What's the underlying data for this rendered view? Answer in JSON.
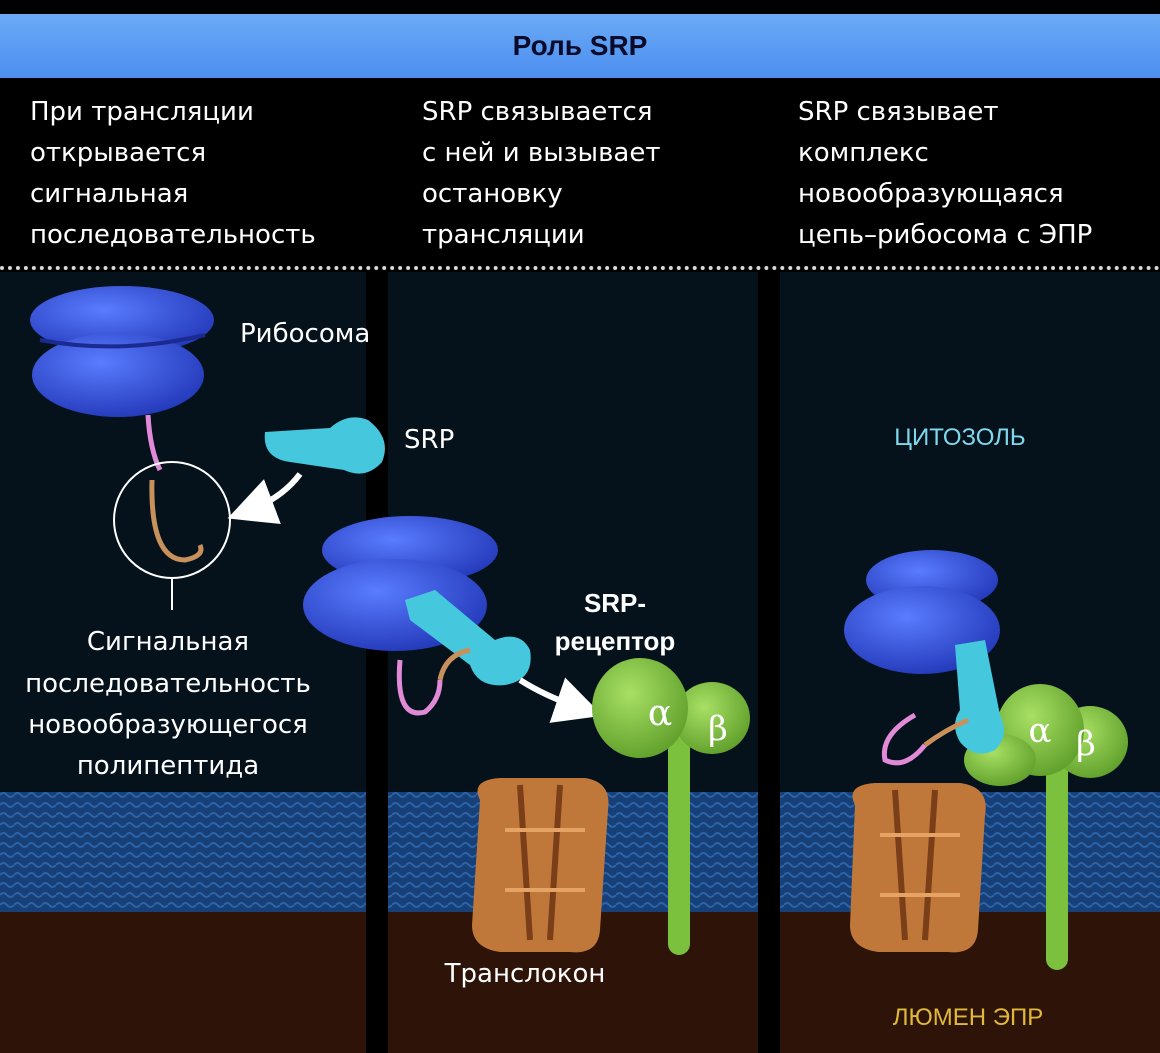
{
  "title": "Роль SRP",
  "steps": [
    "При трансляции\nоткрывается\nсигнальная\nпоследовательность",
    "SRP связывается\nс ней и вызывает\nостановку\nтрансляции",
    "SRP связывает\nкомплекс\nновообразующаяся\nцепь–рибосома с ЭПР"
  ],
  "labels": {
    "ribosome": "Рибосома",
    "srp": "SRP",
    "signal_line1": "Сигнальная",
    "signal_line2": "последовательность",
    "signal_line3": "новообразующегося",
    "signal_line4": "полипептида",
    "srp_receptor_line1": "SRP-",
    "srp_receptor_line2": "рецептор",
    "alpha": "α",
    "beta": "β",
    "translocon": "Транслокон",
    "cytosol": "ЦИТОЗОЛЬ",
    "er_lumen": "ЛЮМЕН ЭПР"
  },
  "colors": {
    "banner": "#5a9cf2",
    "ribosome": "#3a5fe0",
    "srp": "#40c8e0",
    "receptor": "#8cd24a",
    "translocon": "#c0783a",
    "membrane": "#1c4d8c",
    "lumen": "#3a1a0e",
    "cytosol_text": "#7fd9ee",
    "lumen_text": "#e0b93a"
  }
}
